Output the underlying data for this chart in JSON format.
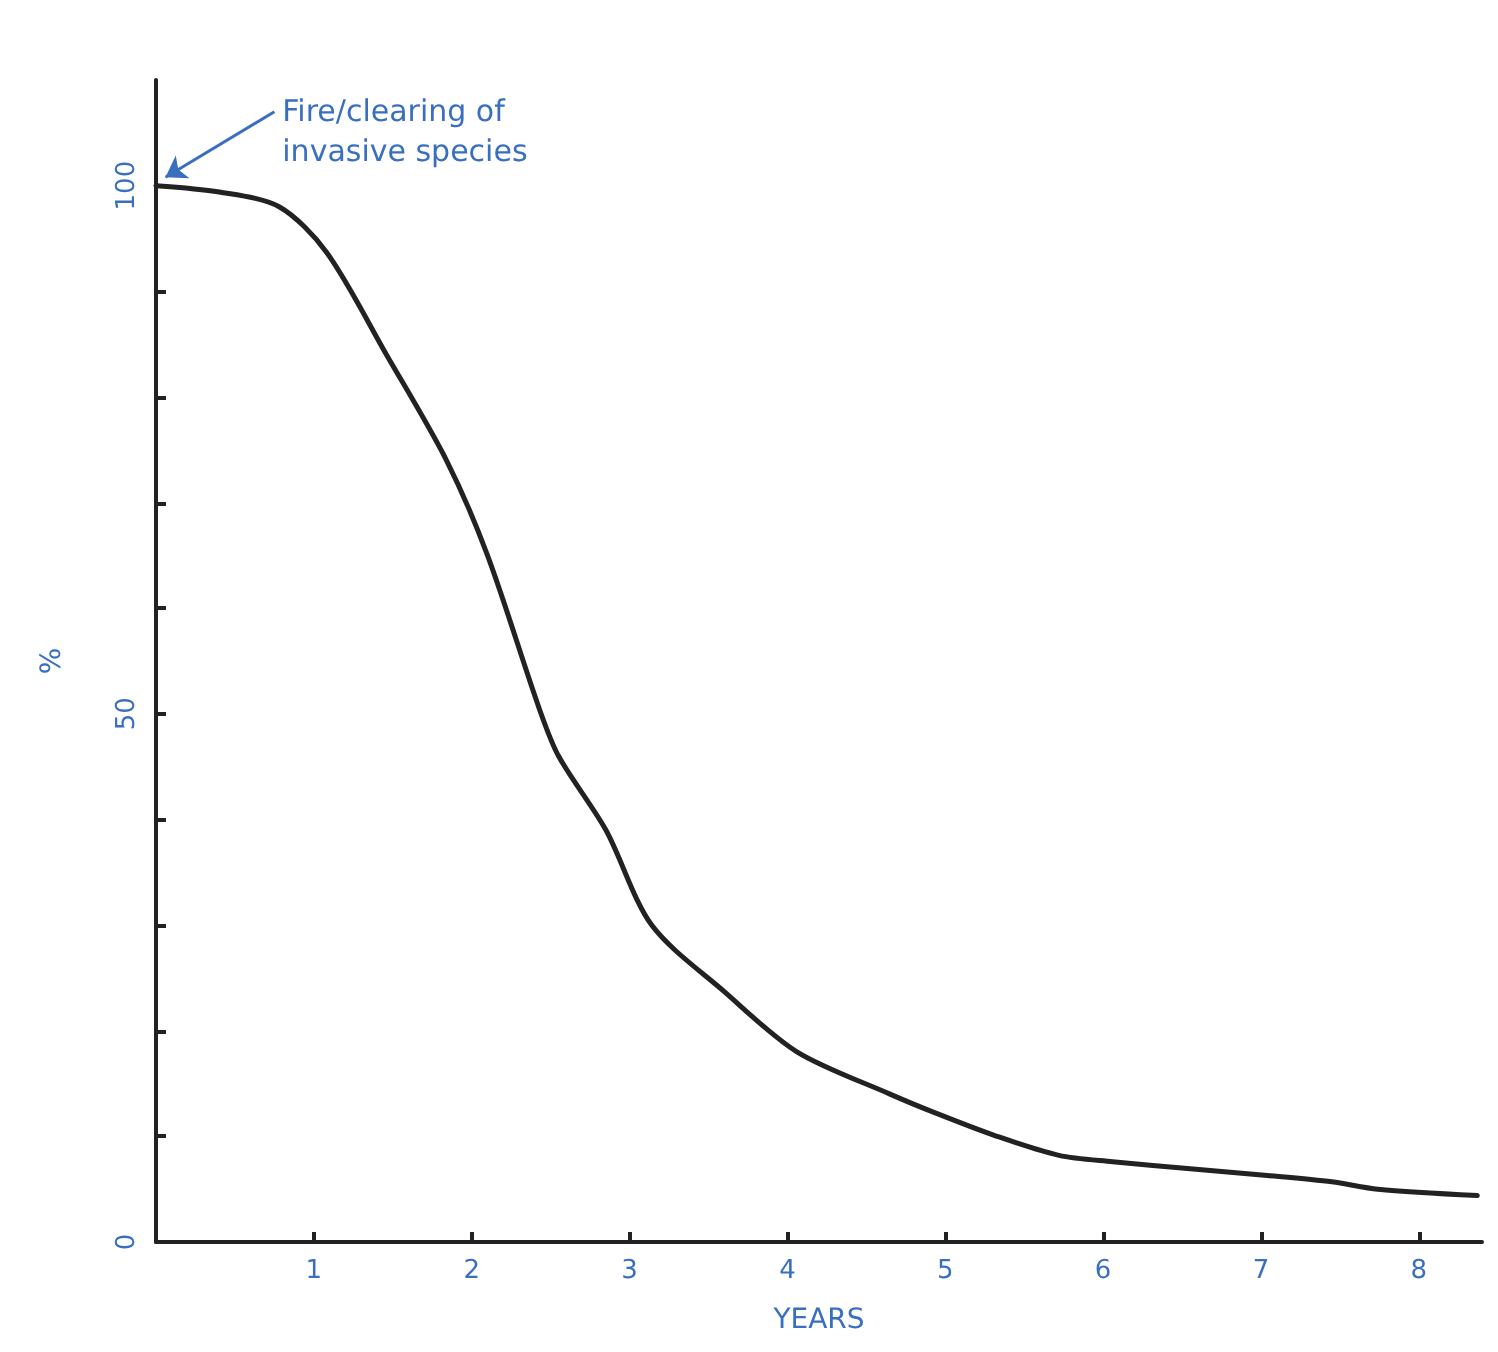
{
  "chart_data": {
    "type": "line",
    "xlabel": "YEARS",
    "ylabel": "%",
    "x": [
      0,
      0.4,
      0.78,
      1.08,
      1.46,
      1.84,
      2.1,
      2.43,
      2.55,
      2.85,
      3.14,
      3.6,
      4.06,
      4.65,
      4.94,
      5.31,
      5.72,
      6.06,
      6.57,
      7.04,
      7.45,
      7.74,
      8.37
    ],
    "values": [
      100,
      99.4,
      98,
      93.7,
      84,
      74,
      65,
      50.4,
      46,
      39,
      30,
      23.7,
      18,
      14,
      12.2,
      10.1,
      8.2,
      7.6,
      6.9,
      6.3,
      5.7,
      5.0,
      4.4
    ],
    "color": "#222222",
    "marker": "none",
    "line_style": "solid",
    "xlim": [
      0,
      8.4
    ],
    "xticks": [
      1,
      2,
      3,
      4,
      5,
      6,
      7,
      8
    ],
    "ylim": [
      0,
      110
    ],
    "yticks": [
      0,
      {
        "value": 10,
        "label": null
      },
      {
        "value": 20,
        "label": null
      },
      {
        "value": 30,
        "label": null
      },
      {
        "value": 40,
        "label": null
      },
      50,
      {
        "value": 60,
        "label": null
      },
      {
        "value": 70,
        "label": null
      },
      {
        "value": 80,
        "label": null
      },
      {
        "value": 90,
        "label": null
      },
      100
    ],
    "annotations": [
      {
        "text": "Fire/clearing of invasive species",
        "x": 0,
        "y": 100
      }
    ]
  }
}
